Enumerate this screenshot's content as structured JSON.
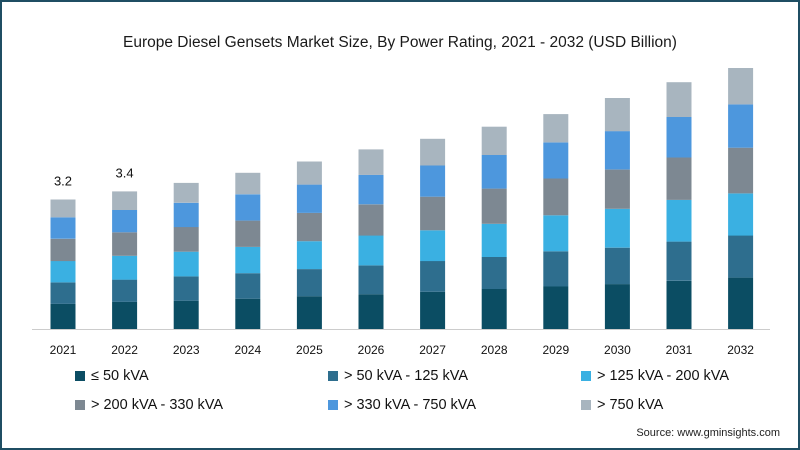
{
  "chart_data": {
    "type": "bar",
    "stacked": true,
    "title": "Europe Diesel Gensets Market Size, By Power Rating, 2021 - 2032 (USD Billion)",
    "xlabel": "",
    "ylabel": "",
    "categories": [
      "2021",
      "2022",
      "2023",
      "2024",
      "2025",
      "2026",
      "2027",
      "2028",
      "2029",
      "2030",
      "2031",
      "2032"
    ],
    "series": [
      {
        "name": "≤ 50 kVA",
        "color": "#0b4d63",
        "values": [
          0.62,
          0.67,
          0.7,
          0.75,
          0.81,
          0.86,
          0.92,
          0.99,
          1.05,
          1.11,
          1.19,
          1.27
        ]
      },
      {
        "name": "> 50 kVA - 125 kVA",
        "color": "#2e6e8e",
        "values": [
          0.53,
          0.55,
          0.6,
          0.63,
          0.67,
          0.71,
          0.76,
          0.79,
          0.87,
          0.9,
          0.97,
          1.04
        ]
      },
      {
        "name": "> 125 kVA - 200 kVA",
        "color": "#3ab0e2",
        "values": [
          0.53,
          0.59,
          0.61,
          0.65,
          0.69,
          0.74,
          0.76,
          0.82,
          0.89,
          0.96,
          1.03,
          1.04
        ]
      },
      {
        "name": "> 200 kVA - 330 kVA",
        "color": "#7d8892",
        "values": [
          0.55,
          0.58,
          0.61,
          0.65,
          0.7,
          0.77,
          0.83,
          0.87,
          0.91,
          0.97,
          1.05,
          1.13
        ]
      },
      {
        "name": "> 330 kVA - 750 kVA",
        "color": "#4d97dd",
        "values": [
          0.53,
          0.55,
          0.6,
          0.65,
          0.7,
          0.73,
          0.77,
          0.83,
          0.89,
          0.95,
          1.0,
          1.07
        ]
      },
      {
        "name": "> 750 kVA",
        "color": "#a8b5bf",
        "values": [
          0.44,
          0.46,
          0.49,
          0.53,
          0.57,
          0.63,
          0.66,
          0.7,
          0.7,
          0.82,
          0.86,
          0.9
        ]
      }
    ],
    "data_labels": [
      "3.2",
      "3.4",
      "",
      "",
      "",
      "",
      "",
      "",
      "",
      "",
      "",
      ""
    ],
    "ylim": [
      0,
      6.5
    ],
    "grid": false,
    "legend_position": "bottom"
  },
  "source": "Source: www.gminsights.com"
}
